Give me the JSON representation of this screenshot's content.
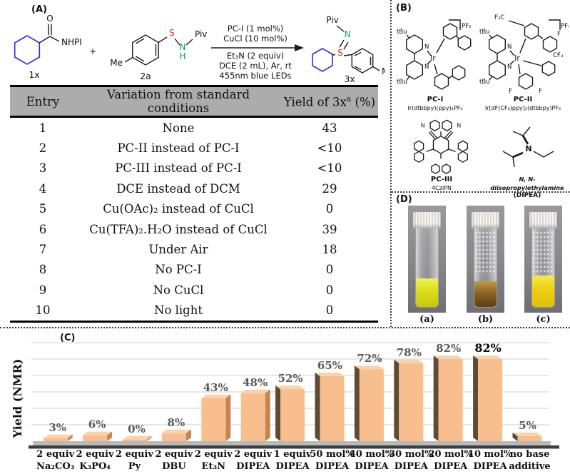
{
  "panel_a": {
    "label": "(A)",
    "scheme": {
      "compound1": {
        "id": "1x",
        "o": "O",
        "nhpi": "NHPI"
      },
      "plus": "+",
      "compound2": {
        "id": "2a",
        "me": "Me",
        "s": "S",
        "n": "N",
        "h": "H",
        "piv": "Piv"
      },
      "conditions_above": [
        "PC-I (1 mol%)",
        "CuCl (10 mol%)"
      ],
      "conditions_below": [
        "Et₃N (2 equiv)",
        "DCE (2 mL), Ar, rt",
        "455nm blue LEDs"
      ],
      "product": {
        "id": "3x",
        "piv": "Piv",
        "n": "N",
        "s": "S",
        "me": "Me"
      }
    },
    "table": {
      "headers": [
        "Entry",
        "Variation from standard conditions",
        {
          "main": "Yield of 3x",
          "sup": "a",
          "tail": " (%)"
        }
      ],
      "rows": [
        [
          "1",
          "None",
          "43"
        ],
        [
          "2",
          "PC-II instead of PC-I",
          "<10"
        ],
        [
          "3",
          "PC-III instead of PC-I",
          "<10"
        ],
        [
          "4",
          "DCE instead of DCM",
          "29"
        ],
        [
          "5",
          "Cu(OAc)₂ instead of CuCl",
          "0"
        ],
        [
          "6",
          "Cu(TFA)₂.H₂O instead of CuCl",
          "39"
        ],
        [
          "7",
          "Under Air",
          "18"
        ],
        [
          "8",
          "No PC-I",
          "0"
        ],
        [
          "9",
          "No CuCl",
          "0"
        ],
        [
          "10",
          "No light",
          "0"
        ]
      ]
    }
  },
  "panel_b": {
    "label": "(B)",
    "pc1": {
      "name": "PC-I",
      "formula": "Ir(dtbbpy)(ppy)₂PF₆",
      "counterion": "PF₆",
      "metal": "Ir",
      "n": "N",
      "tbu": "tBu"
    },
    "pc2": {
      "name": "PC-II",
      "formula": "Ir[dF(CF₃)ppy]₂(dtbbpy)PF₆",
      "counterion": "PF₆",
      "metal": "Ir",
      "n": "N",
      "tbu": "tBu",
      "f3c": "F₃C",
      "cf3": "CF₃",
      "f": "F"
    },
    "pc3": {
      "name": "PC-III",
      "formula": "4CzIPN",
      "n": "N"
    },
    "amine": {
      "name": "N, N-diisopropylethylamine",
      "abbr": "(DIPEA)",
      "n": "N"
    }
  },
  "panel_d": {
    "label": "(D)",
    "vials": [
      {
        "label": "(a)",
        "liquid_gradient": "linear-gradient(180deg,#eef353,#dfe01c 40%,#c9c40e)",
        "liquid_height": 40,
        "condensation": false
      },
      {
        "label": "(b)",
        "liquid_gradient": "linear-gradient(180deg,#c29a4a,#8a6326 45%,#5a4212)",
        "liquid_height": 36,
        "condensation": true
      },
      {
        "label": "(c)",
        "liquid_gradient": "linear-gradient(180deg,#f6ea52,#efd211 40%,#dec00a)",
        "liquid_height": 44,
        "condensation": true
      }
    ]
  },
  "panel_c": {
    "label": "(C)"
  },
  "chart_data": {
    "type": "bar",
    "title": "",
    "ylabel": "Yield (NMR)",
    "ylim": [
      0,
      100
    ],
    "grid": true,
    "legend": "none",
    "categories": [
      "2 equiv Na₂CO₃",
      "2 equiv K₃PO₄",
      "2 equiv Py",
      "2 equiv DBU",
      "2 equiv Et₃N",
      "2 equiv DIPEA",
      "1 equiv DIPEA",
      "50 mol% DIPEA",
      "40 mol% DIPEA",
      "30 mol% DIPEA",
      "20 mol% DIPEA",
      "10 mol% DIPEA",
      "no base additive"
    ],
    "category_lines": [
      [
        "2 equiv",
        "Na₂CO₃"
      ],
      [
        "2 equiv",
        "K₃PO₄"
      ],
      [
        "2 equiv",
        "Py"
      ],
      [
        "2 equiv",
        "DBU"
      ],
      [
        "2 equiv",
        "Et₃N"
      ],
      [
        "2 equiv",
        "DIPEA"
      ],
      [
        "1 equiv",
        "DIPEA"
      ],
      [
        "50 mol%",
        "DIPEA"
      ],
      [
        "40 mol%",
        "DIPEA"
      ],
      [
        "30 mol%",
        "DIPEA"
      ],
      [
        "20 mol%",
        "DIPEA"
      ],
      [
        "10 mol%",
        "DIPEA"
      ],
      [
        "no base",
        "additive"
      ]
    ],
    "values": [
      3,
      6,
      0,
      8,
      43,
      48,
      52,
      65,
      72,
      78,
      82,
      82,
      5
    ],
    "value_labels": [
      "3%",
      "6%",
      "0%",
      "8%",
      "43%",
      "48%",
      "52%",
      "65%",
      "72%",
      "78%",
      "82%",
      "82%",
      "5%"
    ],
    "bold_value_index": 11,
    "colors": {
      "front": "#f9be8e",
      "top": "#fbd3aa",
      "side_right": "#c9834f",
      "side_left_dark": "#5e4a35",
      "floor": "#b9b9b9",
      "floor_edge": "#3d3d3d",
      "gridline": "#d8d8d8"
    }
  }
}
